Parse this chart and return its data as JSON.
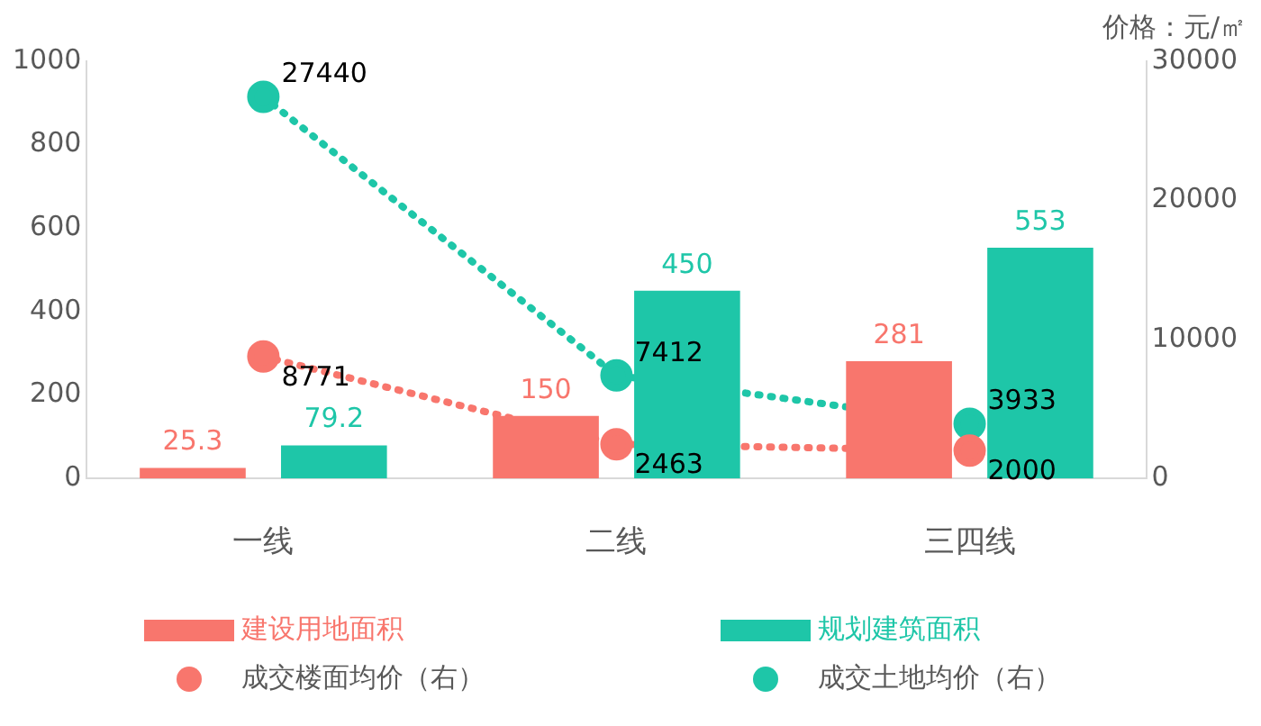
{
  "chart_data": {
    "type": "bar",
    "categories": [
      "一线",
      "二线",
      "三四线"
    ],
    "series": [
      {
        "name": "建设用地面积",
        "color": "#f8766d",
        "values": [
          25.3,
          150,
          281
        ]
      },
      {
        "name": "规划建筑面积",
        "color": "#1ec6a8",
        "values": [
          79.2,
          450,
          553
        ]
      },
      {
        "name": "成交楼面均价（右）",
        "type": "line",
        "axis": "y2",
        "color": "#f8766d",
        "values": [
          8771,
          2463,
          2000
        ]
      },
      {
        "name": "成交土地均价（右）",
        "type": "line",
        "axis": "y2",
        "color": "#1ec6a8",
        "values": [
          27440,
          7412,
          3933
        ]
      }
    ],
    "ylim": [
      0,
      1000
    ],
    "yticks": [
      0,
      200,
      400,
      600,
      800,
      1000
    ],
    "y2lim": [
      0,
      30000
    ],
    "y2ticks": [
      0,
      10000,
      20000,
      30000
    ],
    "y2label": "价格：元/㎡",
    "data_labels": true,
    "grid": false,
    "legend": "bottom",
    "marker": "circle",
    "line_style": "dotted"
  }
}
